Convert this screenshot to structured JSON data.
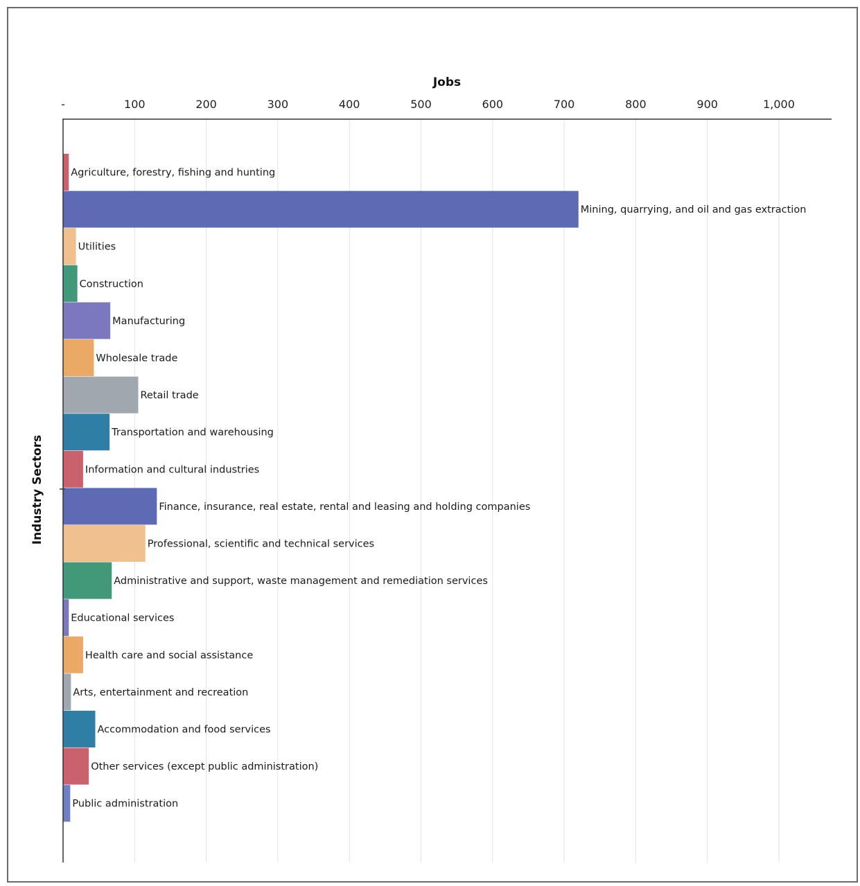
{
  "chart_data": {
    "type": "bar",
    "orientation": "horizontal",
    "title": "",
    "xlabel": "Jobs",
    "ylabel": "Industry Sectors",
    "xlim": [
      0,
      1070
    ],
    "x_axis_position": "top",
    "x_ticks": [
      {
        "value": 0,
        "label": "-"
      },
      {
        "value": 100,
        "label": "100"
      },
      {
        "value": 200,
        "label": "200"
      },
      {
        "value": 300,
        "label": "300"
      },
      {
        "value": 400,
        "label": "400"
      },
      {
        "value": 500,
        "label": "500"
      },
      {
        "value": 600,
        "label": "600"
      },
      {
        "value": 700,
        "label": "700"
      },
      {
        "value": 800,
        "label": "800"
      },
      {
        "value": 900,
        "label": "900"
      },
      {
        "value": 1000,
        "label": "1,000"
      }
    ],
    "grid": "vertical",
    "legend": "none (bars labeled directly)",
    "categories": [
      "Agriculture, forestry, fishing and hunting",
      "Mining, quarrying, and oil and gas extraction",
      "Utilities",
      "Construction",
      "Manufacturing",
      "Wholesale trade",
      "Retail trade",
      "Transportation and warehousing",
      "Information and cultural industries",
      "Finance, insurance, real estate, rental and leasing and holding companies",
      "Professional, scientific and technical services",
      "Administrative and support, waste management and remediation services",
      "Educational services",
      "Health care and social assistance",
      "Arts, entertainment and recreation",
      "Accommodation and food services",
      "Other services (except public administration)",
      "Public administration"
    ],
    "values": [
      8,
      720,
      18,
      20,
      66,
      43,
      105,
      65,
      28,
      131,
      115,
      68,
      8,
      28,
      11,
      45,
      36,
      10
    ],
    "colors": [
      "#c9626d",
      "#5e6ab4",
      "#f0c08e",
      "#41997a",
      "#7c78bf",
      "#eba966",
      "#a1a7af",
      "#2f7ea6",
      "#c9626d",
      "#5e6ab4",
      "#f0c08e",
      "#41997a",
      "#7c78bf",
      "#eba966",
      "#a1a7af",
      "#2f7ea6",
      "#c9626d",
      "#6f7fc4"
    ]
  }
}
